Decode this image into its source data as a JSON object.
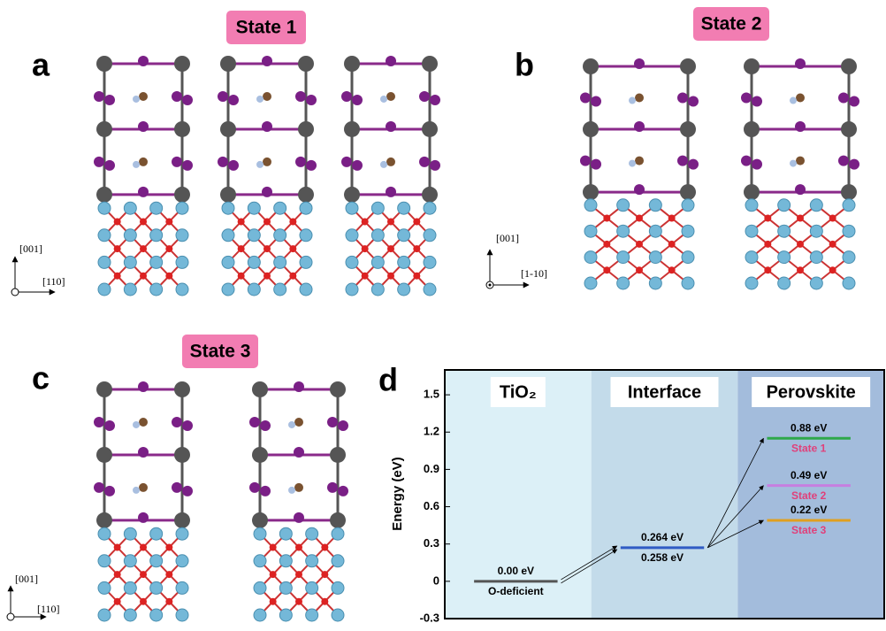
{
  "panels": {
    "a": {
      "letter": "a",
      "state": "State 1",
      "up": "[001]",
      "right": "[110]"
    },
    "b": {
      "letter": "b",
      "state": "State 2",
      "up": "[001]",
      "right": "[1-10]"
    },
    "c": {
      "letter": "c",
      "state": "State 3",
      "up": "[001]",
      "right": "[110]"
    }
  },
  "chart_data": {
    "type": "energy-levels",
    "letter": "d",
    "ylabel": "Energy (eV)",
    "ylim": [
      -0.3,
      1.7
    ],
    "yticks": [
      -0.3,
      0.0,
      0.3,
      0.6,
      0.9,
      1.2,
      1.5
    ],
    "regions": [
      {
        "name": "TiO₂",
        "color": "#dcf0f7",
        "levels": [
          {
            "value": 0.0,
            "color": "#555555",
            "above": "0.00 eV",
            "below": "O-deficient"
          }
        ]
      },
      {
        "name": "Interface",
        "color": "#c3dbea",
        "levels": [
          {
            "value": 0.27,
            "color": "#2f5bc4",
            "above": "0.264 eV",
            "below": "0.258 eV"
          }
        ]
      },
      {
        "name": "Perovskite",
        "color": "#a3bcdc",
        "levels": [
          {
            "value": 1.15,
            "color": "#2ea84a",
            "above": "0.88 eV",
            "below": "State 1"
          },
          {
            "value": 0.77,
            "color": "#c77ee0",
            "above": "0.49 eV",
            "below": "State 2"
          },
          {
            "value": 0.49,
            "color": "#e0a020",
            "above": "0.22 eV",
            "below": "State 3"
          }
        ]
      }
    ]
  }
}
